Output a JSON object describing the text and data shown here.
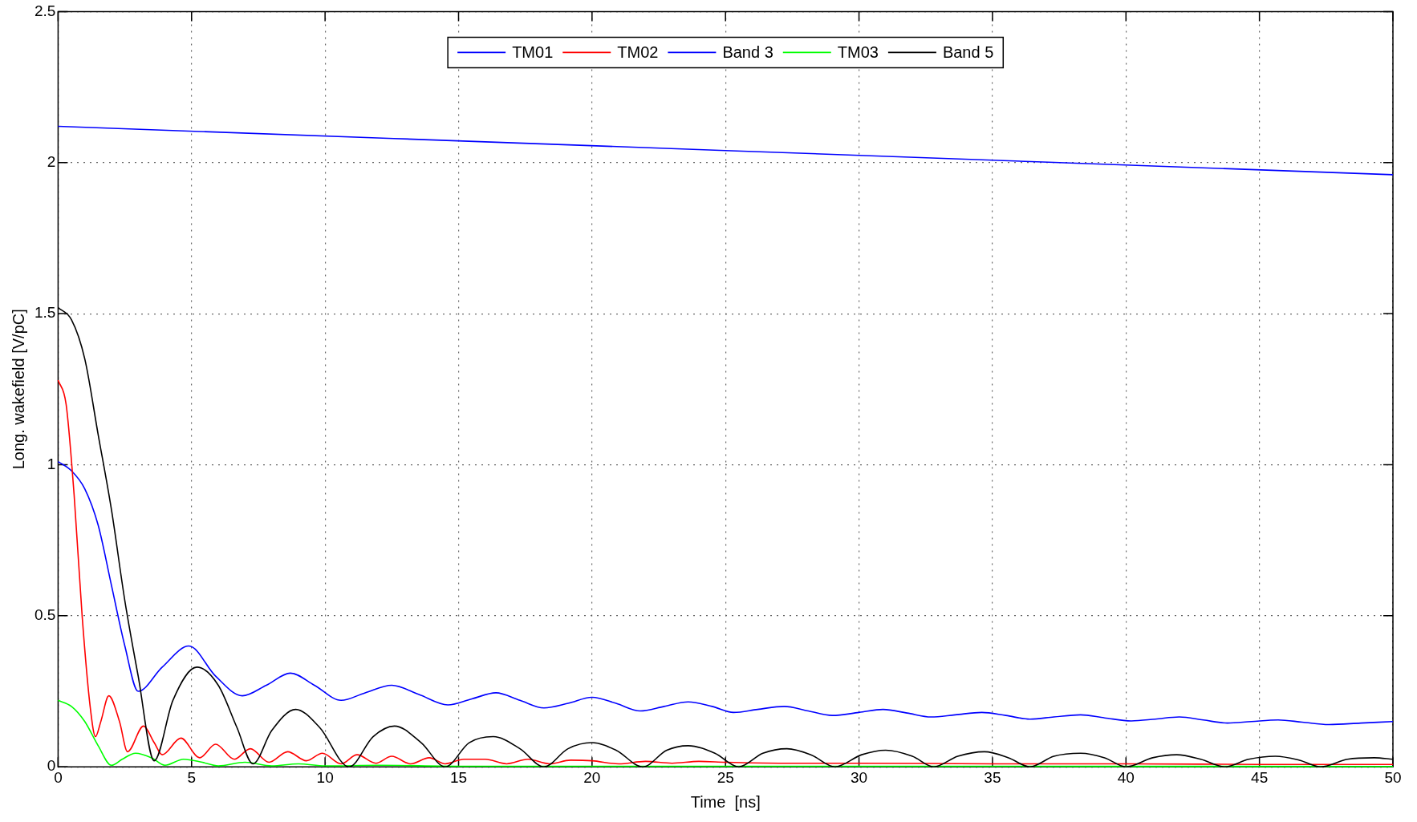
{
  "chart_data": {
    "type": "line",
    "xlabel": "Time  [ns]",
    "ylabel": "Long. wakefield [V/pC]",
    "xlim": [
      0,
      50
    ],
    "xticks": [
      0,
      5,
      10,
      15,
      20,
      25,
      30,
      35,
      40,
      45,
      50
    ],
    "ylim": [
      0,
      2.5
    ],
    "yticks": [
      0,
      0.5,
      1,
      1.5,
      2,
      2.5
    ],
    "grid": true,
    "legend": "top",
    "marker": "none",
    "line_style": "solid",
    "series": [
      {
        "name": "TM01",
        "color": "#0000ff",
        "x": [
          0,
          0.5,
          1,
          1.5,
          2,
          2.5,
          3,
          3.9,
          4.9,
          5.9,
          6.9,
          7.8,
          8.7,
          9.6,
          10.6,
          11.5,
          12.5,
          13.5,
          14.6,
          15.5,
          16.4,
          17.3,
          18.2,
          19.1,
          20,
          20.9,
          21.8,
          22.7,
          23.6,
          24.5,
          25.3,
          26.2,
          27.2,
          28.1,
          29,
          30,
          30.9,
          31.8,
          32.7,
          33.6,
          34.6,
          35.5,
          36.4,
          37.3,
          38.3,
          39.2,
          40.2,
          41.1,
          42,
          42.9,
          43.8,
          44.7,
          45.7,
          46.6,
          47.6,
          48.8,
          50
        ],
        "values": [
          1.01,
          0.98,
          0.92,
          0.8,
          0.6,
          0.4,
          0.25,
          0.33,
          0.4,
          0.3,
          0.235,
          0.27,
          0.31,
          0.27,
          0.22,
          0.245,
          0.27,
          0.24,
          0.205,
          0.225,
          0.245,
          0.22,
          0.195,
          0.21,
          0.23,
          0.21,
          0.185,
          0.2,
          0.215,
          0.2,
          0.18,
          0.19,
          0.2,
          0.185,
          0.17,
          0.18,
          0.19,
          0.178,
          0.165,
          0.172,
          0.18,
          0.17,
          0.158,
          0.165,
          0.172,
          0.162,
          0.152,
          0.158,
          0.165,
          0.155,
          0.145,
          0.15,
          0.155,
          0.148,
          0.14,
          0.145,
          0.15
        ]
      },
      {
        "name": "TM02",
        "color": "#ff0000",
        "x": [
          0,
          0.3,
          0.6,
          0.9,
          1.2,
          1.4,
          1.6,
          1.9,
          2.3,
          2.6,
          3.2,
          3.6,
          3.9,
          4.6,
          5.3,
          5.9,
          6.6,
          7.2,
          7.9,
          8.6,
          9.3,
          9.9,
          10.6,
          11.2,
          11.9,
          12.5,
          13.2,
          13.9,
          14.5,
          15.2,
          16,
          16.8,
          17.6,
          18.4,
          19.2,
          20,
          21,
          22,
          23,
          24,
          25,
          27,
          30,
          35,
          40,
          45,
          50
        ],
        "values": [
          1.28,
          1.2,
          0.9,
          0.5,
          0.2,
          0.1,
          0.15,
          0.235,
          0.15,
          0.05,
          0.135,
          0.08,
          0.04,
          0.095,
          0.03,
          0.075,
          0.025,
          0.06,
          0.015,
          0.05,
          0.02,
          0.045,
          0.01,
          0.04,
          0.012,
          0.035,
          0.01,
          0.03,
          0.01,
          0.025,
          0.025,
          0.01,
          0.025,
          0.01,
          0.022,
          0.02,
          0.01,
          0.018,
          0.012,
          0.018,
          0.015,
          0.012,
          0.012,
          0.01,
          0.01,
          0.008,
          0.008
        ]
      },
      {
        "name": "Band 3",
        "color": "#0000ff",
        "x": [
          0,
          25,
          50
        ],
        "values": [
          2.12,
          2.04,
          1.96
        ]
      },
      {
        "name": "TM03",
        "color": "#00ff00",
        "x": [
          0,
          0.5,
          1,
          1.5,
          2,
          2.4,
          2.9,
          3.5,
          4,
          4.7,
          5.4,
          6,
          7,
          8,
          9,
          10,
          12,
          15,
          20,
          30,
          50
        ],
        "values": [
          0.22,
          0.2,
          0.15,
          0.07,
          0.005,
          0.025,
          0.045,
          0.03,
          0.005,
          0.025,
          0.015,
          0.003,
          0.015,
          0.003,
          0.01,
          0.003,
          0.005,
          0.002,
          0.002,
          0.002,
          0.001
        ]
      },
      {
        "name": "Band 5",
        "color": "#000000",
        "x": [
          0,
          0.5,
          1,
          1.5,
          2,
          2.5,
          3,
          3.6,
          4.3,
          5.2,
          6,
          6.7,
          7.3,
          8,
          8.9,
          9.8,
          10.9,
          11.8,
          12.6,
          13.6,
          14.5,
          15.4,
          16.3,
          17.3,
          18.2,
          19.1,
          20,
          20.9,
          21.9,
          22.8,
          23.6,
          24.6,
          25.5,
          26.4,
          27.3,
          28.2,
          29.1,
          30.1,
          31,
          32,
          32.8,
          33.7,
          34.7,
          35.6,
          36.4,
          37.3,
          38.3,
          39.2,
          40,
          41,
          41.9,
          42.8,
          43.7,
          44.6,
          45.6,
          46.5,
          47.3,
          48.3,
          49.3,
          50
        ],
        "values": [
          1.52,
          1.48,
          1.35,
          1.1,
          0.85,
          0.55,
          0.3,
          0.02,
          0.22,
          0.33,
          0.27,
          0.13,
          0.01,
          0.12,
          0.19,
          0.13,
          0,
          0.1,
          0.135,
          0.08,
          0,
          0.08,
          0.1,
          0.06,
          0,
          0.06,
          0.08,
          0.055,
          0,
          0.055,
          0.07,
          0.045,
          0,
          0.045,
          0.06,
          0.04,
          0,
          0.04,
          0.055,
          0.035,
          0,
          0.035,
          0.05,
          0.03,
          0,
          0.035,
          0.045,
          0.03,
          0,
          0.03,
          0.04,
          0.025,
          0,
          0.025,
          0.035,
          0.022,
          0,
          0.025,
          0.03,
          0.025
        ]
      }
    ]
  }
}
